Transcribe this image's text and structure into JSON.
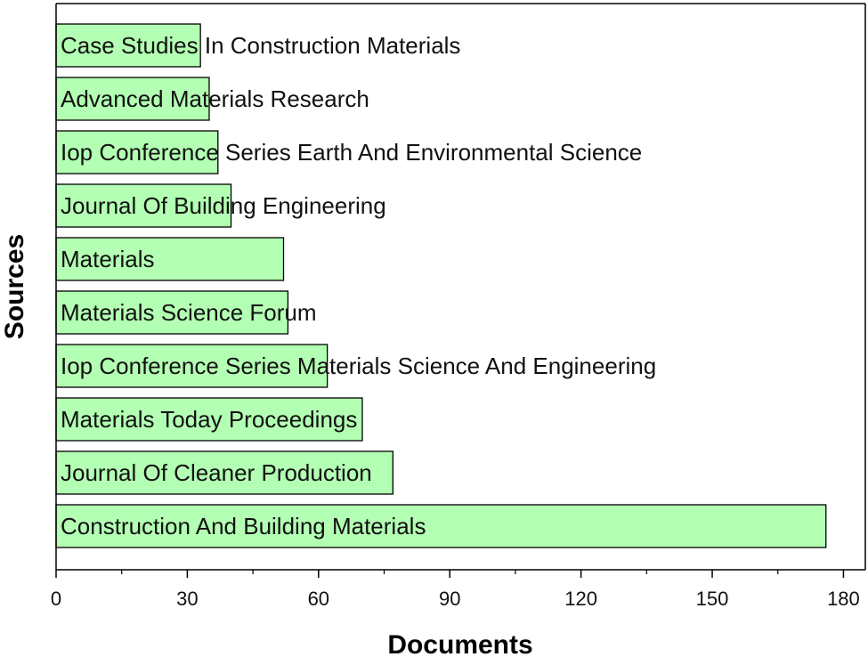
{
  "chart_data": {
    "type": "bar",
    "orientation": "horizontal",
    "xlabel": "Documents",
    "ylabel": "Sources",
    "xlim": [
      0,
      185
    ],
    "xticks": [
      0,
      30,
      60,
      90,
      120,
      150,
      180
    ],
    "grid": false,
    "legend": "none",
    "bar_color": "#b3ffb3",
    "categories": [
      "Case Studies In Construction Materials",
      "Advanced Materials Research",
      "Iop Conference Series Earth And Environmental Science",
      "Journal Of Building Engineering",
      "Materials",
      "Materials Science Forum",
      "Iop Conference Series Materials Science And Engineering",
      "Materials Today Proceedings",
      "Journal Of Cleaner Production",
      "Construction And Building Materials"
    ],
    "values": [
      33,
      35,
      37,
      40,
      52,
      53,
      62,
      70,
      77,
      176
    ]
  }
}
